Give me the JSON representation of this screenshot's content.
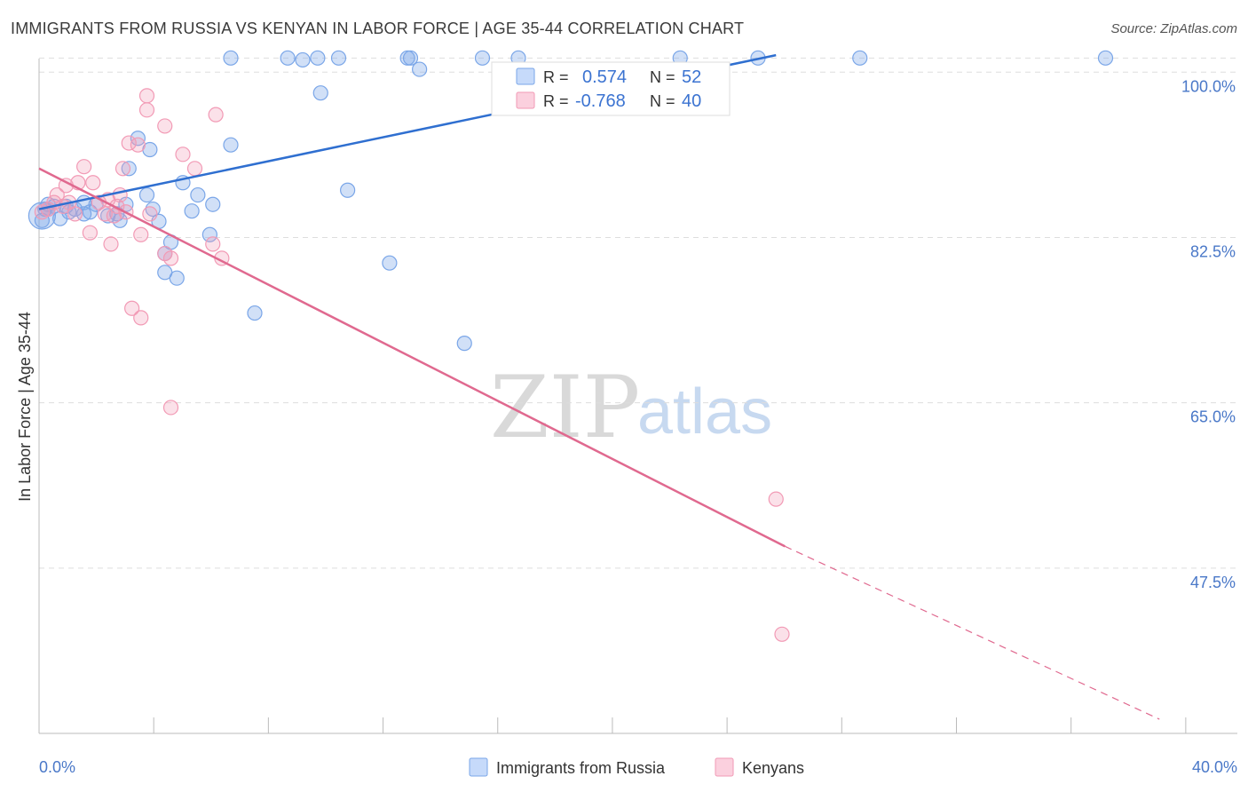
{
  "header": {
    "title": "IMMIGRANTS FROM RUSSIA VS KENYAN IN LABOR FORCE | AGE 35-44 CORRELATION CHART",
    "source": "Source: ZipAtlas.com"
  },
  "watermark": {
    "zip": "ZIP",
    "atlas": "atlas"
  },
  "colors": {
    "russia": "#7aa6e8",
    "russia_line": "#2f6fd0",
    "kenyan": "#f29ab5",
    "kenyan_line": "#e0698f",
    "grid": "#dddddd",
    "axis_label": "#4a78c8"
  },
  "chart_data": {
    "type": "scatter",
    "title": "IMMIGRANTS FROM RUSSIA VS KENYAN IN LABOR FORCE | AGE 35-44 CORRELATION CHART",
    "ylabel": "In Labor Force | Age 35-44",
    "xlabel": "",
    "xlim": [
      0,
      40
    ],
    "ylim": [
      30,
      102
    ],
    "x_tick_labels": [
      "0.0%",
      "40.0%"
    ],
    "y_ticks": [
      47.5,
      65.0,
      82.5,
      100.0
    ],
    "y_tick_labels": [
      "47.5%",
      "65.0%",
      "82.5%",
      "100.0%"
    ],
    "grid": true,
    "legend_position": "top-center",
    "legend": [
      {
        "name": "Immigrants from Russia",
        "r_label": "R =",
        "r": "0.574",
        "n_label": "N =",
        "n": "52"
      },
      {
        "name": "Kenyans",
        "r_label": "R =",
        "r": "-0.768",
        "n_label": "N =",
        "n": "40"
      }
    ],
    "series": [
      {
        "name": "Immigrants from Russia",
        "trend": {
          "x": [
            0.0,
            24.6
          ],
          "y": [
            85.5,
            101.8
          ],
          "style": "solid"
        },
        "points": [
          [
            0.1,
            84.3
          ],
          [
            0.2,
            85.5
          ],
          [
            0.3,
            86.0
          ],
          [
            0.5,
            85.8
          ],
          [
            0.7,
            84.5
          ],
          [
            0.9,
            85.8
          ],
          [
            1.0,
            85.2
          ],
          [
            1.2,
            85.5
          ],
          [
            1.5,
            85.0
          ],
          [
            1.7,
            85.2
          ],
          [
            1.9,
            86.0
          ],
          [
            2.3,
            84.8
          ],
          [
            2.6,
            85.0
          ],
          [
            2.7,
            84.3
          ],
          [
            2.9,
            86.0
          ],
          [
            3.0,
            89.8
          ],
          [
            3.3,
            93.0
          ],
          [
            3.7,
            91.8
          ],
          [
            3.8,
            85.5
          ],
          [
            3.6,
            87.0
          ],
          [
            4.0,
            84.2
          ],
          [
            4.2,
            80.8
          ],
          [
            4.4,
            82.0
          ],
          [
            4.2,
            78.8
          ],
          [
            4.6,
            78.2
          ],
          [
            4.8,
            88.3
          ],
          [
            5.1,
            85.3
          ],
          [
            5.3,
            87.0
          ],
          [
            5.8,
            86.0
          ],
          [
            5.7,
            82.8
          ],
          [
            6.4,
            92.3
          ],
          [
            6.4,
            101.5
          ],
          [
            7.2,
            74.5
          ],
          [
            8.3,
            101.5
          ],
          [
            8.8,
            101.3
          ],
          [
            9.3,
            101.5
          ],
          [
            9.4,
            97.8
          ],
          [
            10.0,
            101.5
          ],
          [
            10.3,
            87.5
          ],
          [
            11.7,
            79.8
          ],
          [
            12.3,
            101.5
          ],
          [
            12.4,
            101.5
          ],
          [
            12.7,
            100.3
          ],
          [
            14.2,
            71.3
          ],
          [
            14.8,
            101.5
          ],
          [
            16.0,
            101.5
          ],
          [
            21.4,
            101.5
          ],
          [
            24.0,
            101.5
          ],
          [
            27.4,
            101.5
          ],
          [
            35.6,
            101.5
          ],
          [
            0.3,
            85.5
          ],
          [
            1.5,
            86.2
          ]
        ]
      },
      {
        "name": "Kenyans",
        "trend": {
          "x": [
            0.0,
            24.9
          ],
          "y": [
            89.8,
            49.8
          ],
          "style": "solid"
        },
        "trend_extension": {
          "x": [
            24.9,
            37.4
          ],
          "y": [
            49.8,
            31.5
          ],
          "style": "dashed"
        },
        "points": [
          [
            0.1,
            85.2
          ],
          [
            0.3,
            85.5
          ],
          [
            0.5,
            86.2
          ],
          [
            0.6,
            87.0
          ],
          [
            0.9,
            88.0
          ],
          [
            1.0,
            86.2
          ],
          [
            1.2,
            85.0
          ],
          [
            1.3,
            88.3
          ],
          [
            1.5,
            90.0
          ],
          [
            1.7,
            83.0
          ],
          [
            1.8,
            88.3
          ],
          [
            2.0,
            86.2
          ],
          [
            2.2,
            85.0
          ],
          [
            2.3,
            86.5
          ],
          [
            2.4,
            81.8
          ],
          [
            2.6,
            85.8
          ],
          [
            2.7,
            87.0
          ],
          [
            2.8,
            89.8
          ],
          [
            2.9,
            85.2
          ],
          [
            3.0,
            92.5
          ],
          [
            3.1,
            75.0
          ],
          [
            3.3,
            92.3
          ],
          [
            3.4,
            82.8
          ],
          [
            3.4,
            74.0
          ],
          [
            3.6,
            97.5
          ],
          [
            3.6,
            96.0
          ],
          [
            3.7,
            85.0
          ],
          [
            4.2,
            80.8
          ],
          [
            4.2,
            94.3
          ],
          [
            4.4,
            80.3
          ],
          [
            4.4,
            64.5
          ],
          [
            4.8,
            91.3
          ],
          [
            5.2,
            89.8
          ],
          [
            5.8,
            81.8
          ],
          [
            5.9,
            95.5
          ],
          [
            6.1,
            80.3
          ],
          [
            24.6,
            54.8
          ],
          [
            24.8,
            40.5
          ],
          [
            0.8,
            85.8
          ],
          [
            2.5,
            84.8
          ]
        ]
      }
    ]
  }
}
